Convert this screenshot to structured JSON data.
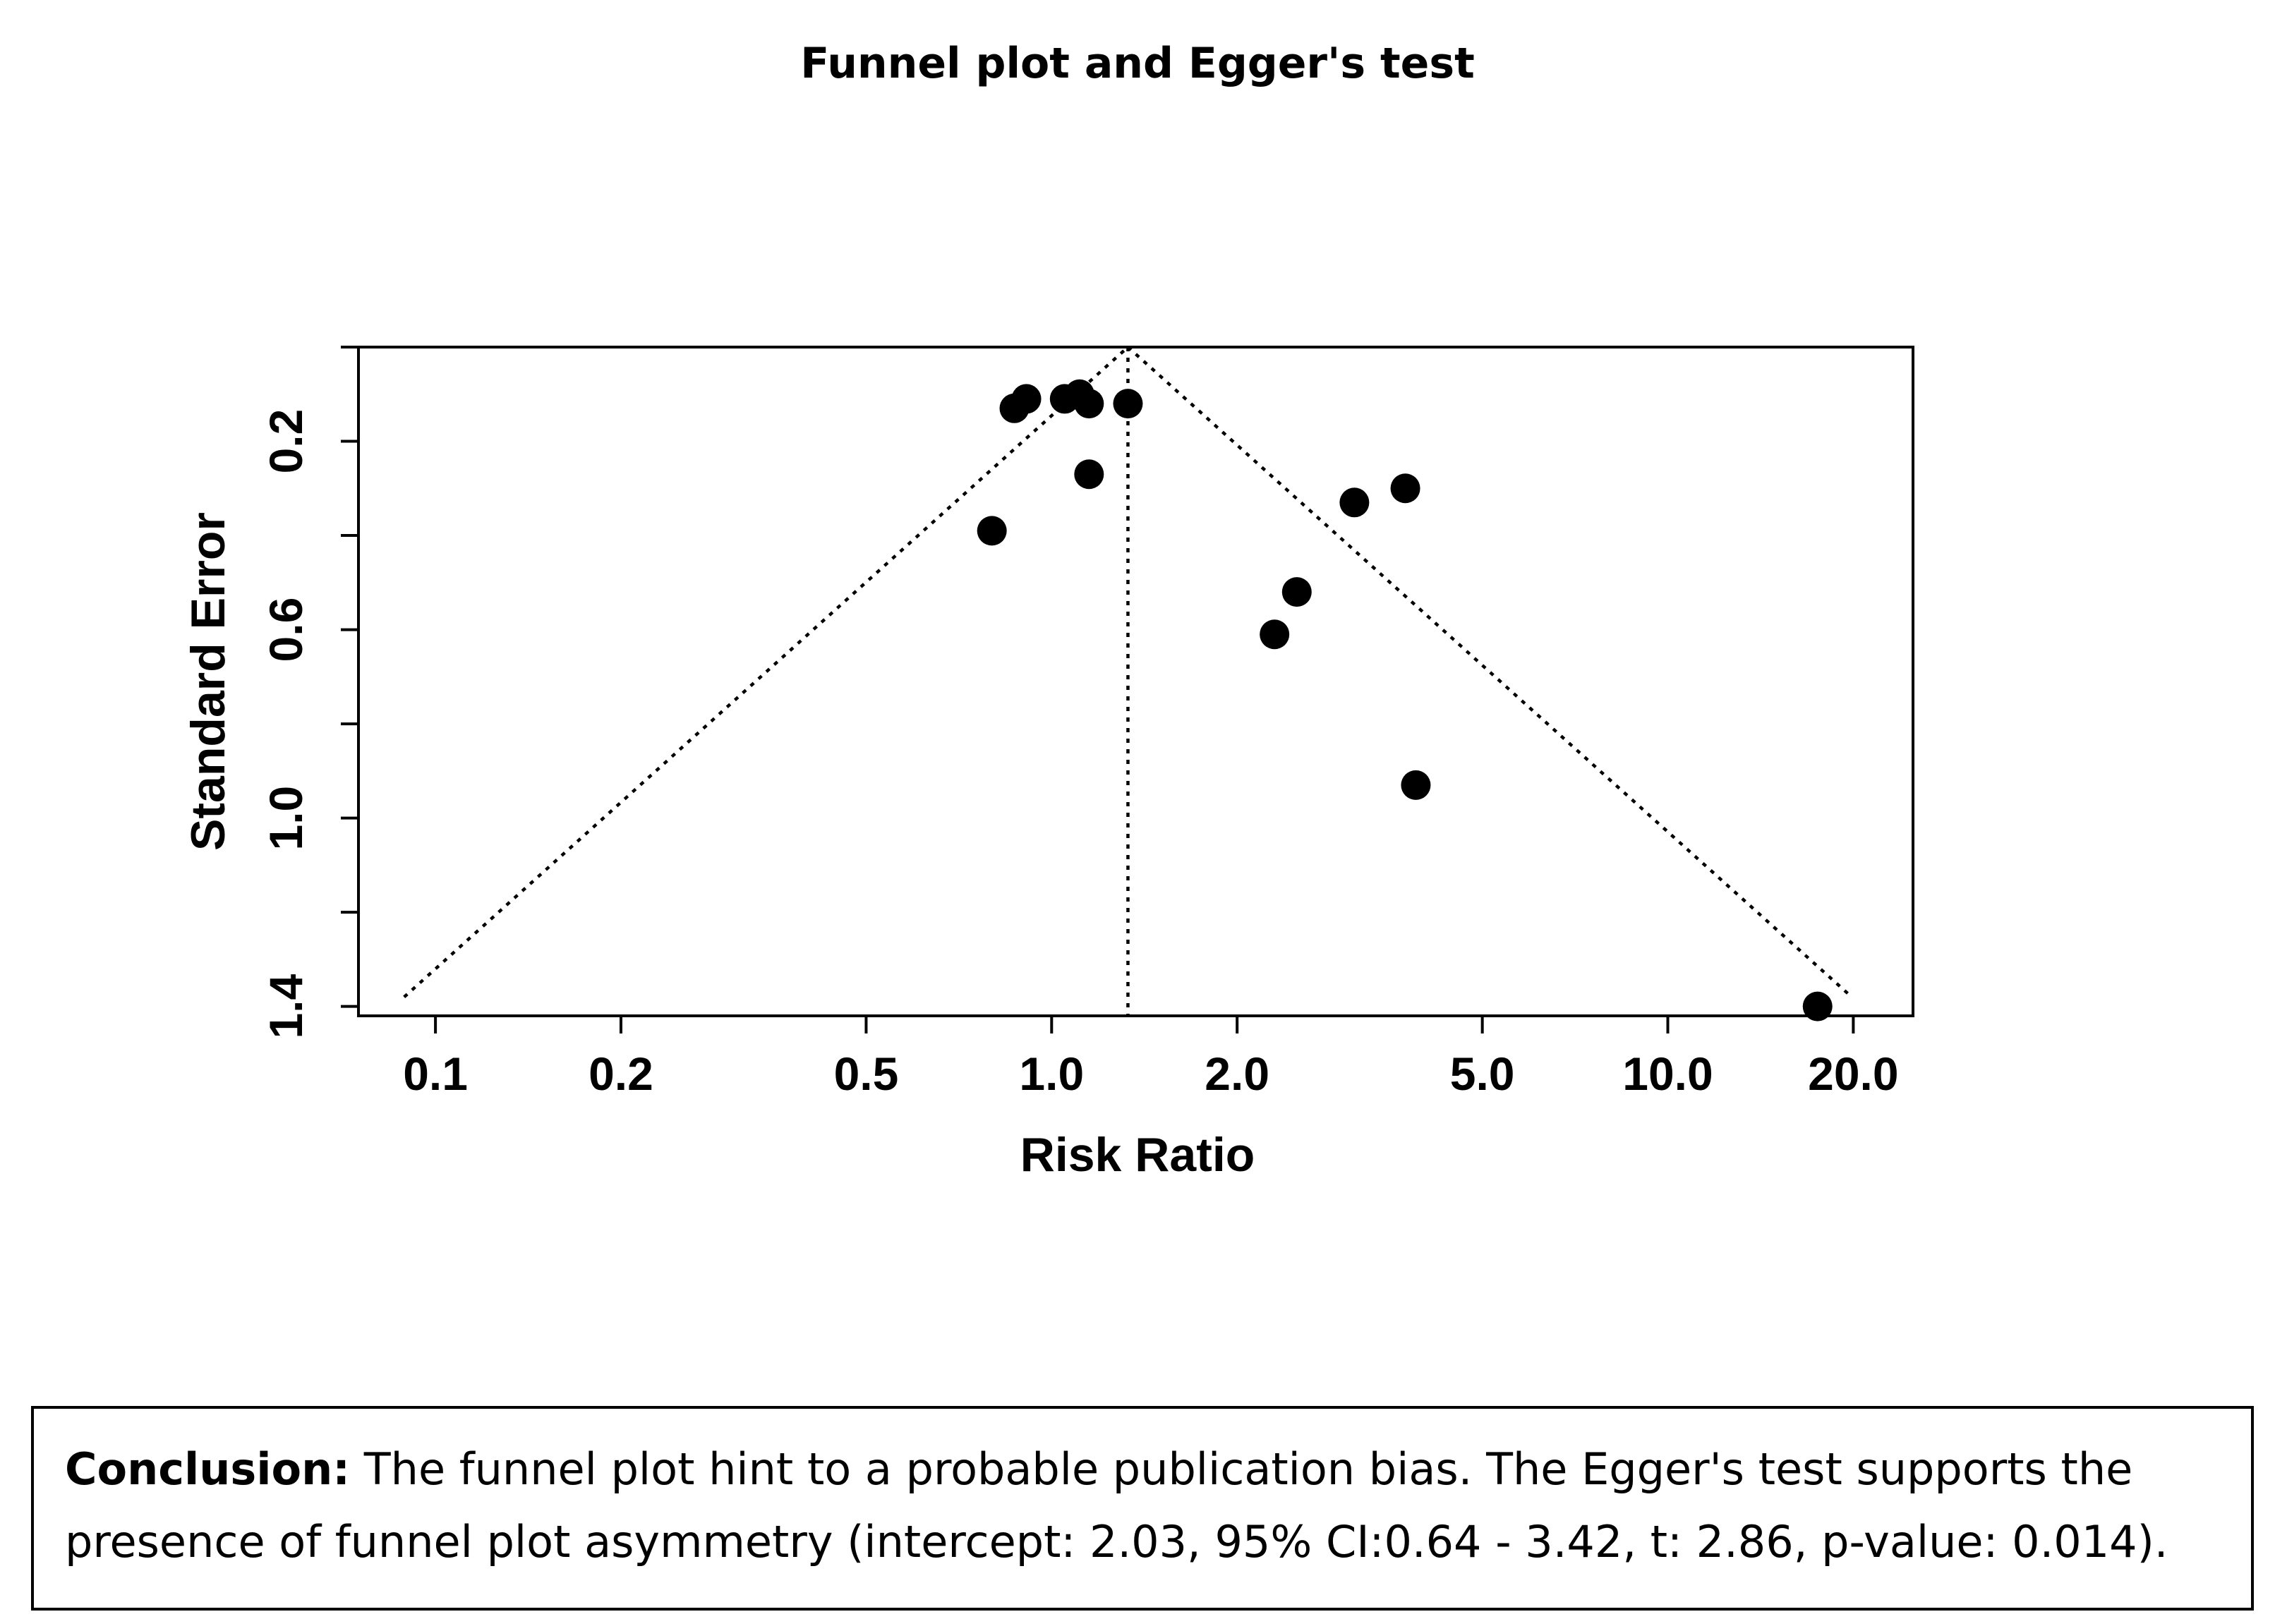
{
  "chart_data": {
    "type": "scatter",
    "title": "Funnel plot and Egger's test",
    "xlabel": "Risk Ratio",
    "ylabel": "Standard Error",
    "x_scale": "log",
    "y_reversed": true,
    "xlim": [
      0.075,
      25
    ],
    "ylim": [
      0,
      1.42
    ],
    "x_ticks": [
      0.1,
      0.2,
      0.5,
      1.0,
      2.0,
      5.0,
      10.0,
      20.0
    ],
    "x_tick_labels": [
      "0.1",
      "0.2",
      "0.5",
      "1.0",
      "2.0",
      "5.0",
      "10.0",
      "20.0"
    ],
    "y_ticks": [
      0.0,
      0.2,
      0.4,
      0.6,
      0.8,
      1.0,
      1.2,
      1.4
    ],
    "y_tick_labels": [
      "",
      "0.2",
      "",
      "0.6",
      "",
      "1.0",
      "",
      "1.4"
    ],
    "pooled_estimate": 1.33,
    "funnel_lines": "dotted",
    "grid": false,
    "points": [
      {
        "x": 0.87,
        "y": 0.13
      },
      {
        "x": 0.91,
        "y": 0.11
      },
      {
        "x": 1.05,
        "y": 0.11
      },
      {
        "x": 1.11,
        "y": 0.1
      },
      {
        "x": 1.15,
        "y": 0.12
      },
      {
        "x": 1.33,
        "y": 0.12
      },
      {
        "x": 1.15,
        "y": 0.27
      },
      {
        "x": 0.8,
        "y": 0.39
      },
      {
        "x": 3.1,
        "y": 0.33
      },
      {
        "x": 3.75,
        "y": 0.3
      },
      {
        "x": 2.5,
        "y": 0.52
      },
      {
        "x": 2.3,
        "y": 0.61
      },
      {
        "x": 3.9,
        "y": 0.93
      },
      {
        "x": 17.5,
        "y": 1.4
      }
    ]
  },
  "conclusion": {
    "label": "Conclusion:",
    "text": " The funnel plot hint to a probable publication bias. The Egger's test supports the presence of funnel plot asymmetry  (intercept: 2.03, 95% CI:0.64 - 3.42, t: 2.86, p-value: 0.014)."
  }
}
